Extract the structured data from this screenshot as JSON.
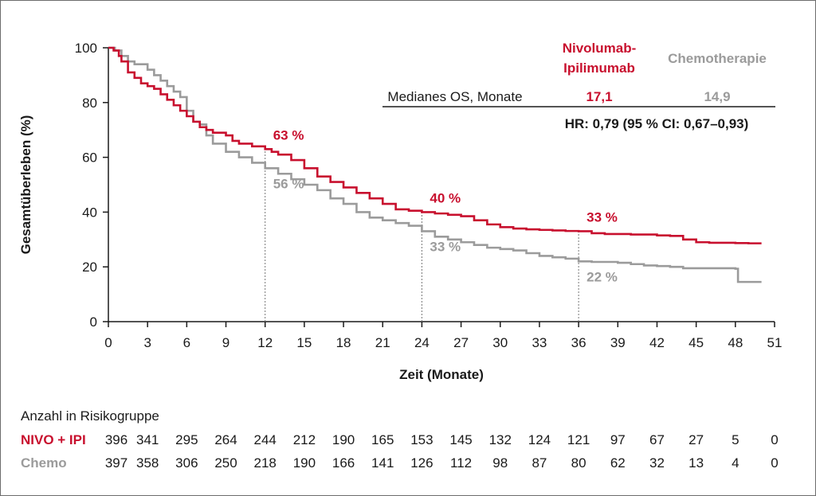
{
  "colors": {
    "nivo": "#c8102e",
    "chemo": "#9b9b9b",
    "axis": "#1a1a1a",
    "text": "#1a1a1a"
  },
  "chart_data": {
    "type": "line",
    "xlabel": "Zeit (Monate)",
    "ylabel": "Gesamtüberleben (%)",
    "xlim": [
      0,
      51
    ],
    "ylim": [
      0,
      100
    ],
    "x_ticks": [
      0,
      3,
      6,
      9,
      12,
      15,
      18,
      21,
      24,
      27,
      30,
      33,
      36,
      39,
      42,
      45,
      48,
      51
    ],
    "y_ticks": [
      0,
      20,
      40,
      60,
      80,
      100
    ],
    "x_tick_labels": [
      "0",
      "3",
      "6",
      "9",
      "12",
      "15",
      "18",
      "21",
      "24",
      "27",
      "30",
      "33",
      "36",
      "39",
      "42",
      "45",
      "48",
      "51"
    ],
    "y_tick_labels": [
      "0",
      "20",
      "40",
      "60",
      "80",
      "100"
    ],
    "series": [
      {
        "name": "Nivolumab-Ipilimumab",
        "color": "#c8102e",
        "points": [
          [
            0,
            100
          ],
          [
            0.4,
            99
          ],
          [
            0.8,
            97
          ],
          [
            1,
            95
          ],
          [
            1.5,
            91
          ],
          [
            2,
            89
          ],
          [
            2.5,
            87
          ],
          [
            3,
            86
          ],
          [
            3.5,
            85
          ],
          [
            4,
            83
          ],
          [
            4.5,
            81
          ],
          [
            5,
            79
          ],
          [
            5.5,
            77
          ],
          [
            6,
            75
          ],
          [
            6.5,
            73
          ],
          [
            7,
            71
          ],
          [
            7.5,
            70
          ],
          [
            8,
            69
          ],
          [
            9,
            68
          ],
          [
            9.5,
            66
          ],
          [
            10,
            65
          ],
          [
            11,
            64
          ],
          [
            12,
            63
          ],
          [
            12.5,
            62
          ],
          [
            13,
            61
          ],
          [
            14,
            59
          ],
          [
            15,
            56
          ],
          [
            16,
            53
          ],
          [
            17,
            51
          ],
          [
            18,
            49
          ],
          [
            19,
            47
          ],
          [
            20,
            45
          ],
          [
            21,
            43
          ],
          [
            22,
            41
          ],
          [
            23,
            40.5
          ],
          [
            24,
            40
          ],
          [
            25,
            39.5
          ],
          [
            26,
            39
          ],
          [
            27,
            38.5
          ],
          [
            28,
            37
          ],
          [
            29,
            35.5
          ],
          [
            30,
            34.5
          ],
          [
            31,
            34
          ],
          [
            32,
            33.7
          ],
          [
            33,
            33.5
          ],
          [
            34,
            33.3
          ],
          [
            35,
            33.1
          ],
          [
            36,
            33
          ],
          [
            37,
            32.3
          ],
          [
            38,
            32
          ],
          [
            40,
            31.8
          ],
          [
            42,
            31.5
          ],
          [
            43,
            31.3
          ],
          [
            44,
            30
          ],
          [
            45,
            29
          ],
          [
            46,
            28.8
          ],
          [
            48,
            28.7
          ],
          [
            49,
            28.6
          ],
          [
            50,
            28.6
          ]
        ]
      },
      {
        "name": "Chemotherapie",
        "color": "#9b9b9b",
        "points": [
          [
            0,
            100
          ],
          [
            0.5,
            99
          ],
          [
            1,
            97
          ],
          [
            1.5,
            95
          ],
          [
            2,
            94
          ],
          [
            3,
            92
          ],
          [
            3.5,
            90
          ],
          [
            4,
            88
          ],
          [
            4.5,
            86
          ],
          [
            5,
            84
          ],
          [
            5.5,
            82
          ],
          [
            6,
            77
          ],
          [
            6.5,
            73
          ],
          [
            7,
            72
          ],
          [
            7.5,
            68
          ],
          [
            8,
            65
          ],
          [
            9,
            62
          ],
          [
            10,
            60
          ],
          [
            11,
            58
          ],
          [
            12,
            56
          ],
          [
            13,
            54
          ],
          [
            14,
            52
          ],
          [
            15,
            50
          ],
          [
            16,
            48
          ],
          [
            17,
            45
          ],
          [
            18,
            43
          ],
          [
            19,
            40
          ],
          [
            20,
            38
          ],
          [
            21,
            37
          ],
          [
            22,
            36
          ],
          [
            23,
            35
          ],
          [
            24,
            33
          ],
          [
            25,
            31
          ],
          [
            26,
            30
          ],
          [
            27,
            29
          ],
          [
            28,
            28
          ],
          [
            29,
            27
          ],
          [
            30,
            26.5
          ],
          [
            31,
            26
          ],
          [
            32,
            25
          ],
          [
            33,
            24
          ],
          [
            34,
            23.5
          ],
          [
            35,
            23
          ],
          [
            36,
            22
          ],
          [
            37,
            21.8
          ],
          [
            38,
            21.8
          ],
          [
            39,
            21.5
          ],
          [
            40,
            21
          ],
          [
            41,
            20.5
          ],
          [
            42,
            20.3
          ],
          [
            43,
            20
          ],
          [
            44,
            19.5
          ],
          [
            45,
            19.5
          ],
          [
            46,
            19.5
          ],
          [
            47,
            19.5
          ],
          [
            48,
            19.3
          ],
          [
            48.2,
            14.5
          ],
          [
            50,
            14.5
          ]
        ]
      }
    ],
    "annotations": [
      {
        "x": 12,
        "series": 0,
        "text": "63 %",
        "ref_y": 63
      },
      {
        "x": 12,
        "series": 1,
        "text": "56 %",
        "ref_y": 56
      },
      {
        "x": 24,
        "series": 0,
        "text": "40 %",
        "ref_y": 40
      },
      {
        "x": 24,
        "series": 1,
        "text": "33 %",
        "ref_y": 33
      },
      {
        "x": 36,
        "series": 0,
        "text": "33 %",
        "ref_y": 33
      },
      {
        "x": 36,
        "series": 1,
        "text": "22 %",
        "ref_y": 22
      }
    ],
    "dashed_guides_x": [
      12,
      24,
      36
    ]
  },
  "stats_box": {
    "nivo_header_line1": "Nivolumab-",
    "nivo_header_line2": "Ipilimumab",
    "chemo_header": "Chemotherapie",
    "median_label": "Medianes OS, Monate",
    "nivo_median": "17,1",
    "chemo_median": "14,9",
    "hr_text": "HR: 0,79 (95 % CI: 0,67–0,93)"
  },
  "risk_table": {
    "title": "Anzahl in Risikogruppe",
    "rows": [
      {
        "label": "NIVO + IPI",
        "values": [
          "396",
          "341",
          "295",
          "264",
          "244",
          "212",
          "190",
          "165",
          "153",
          "145",
          "132",
          "124",
          "121",
          "97",
          "67",
          "27",
          "5",
          "0"
        ]
      },
      {
        "label": "Chemo",
        "values": [
          "397",
          "358",
          "306",
          "250",
          "218",
          "190",
          "166",
          "141",
          "126",
          "112",
          "98",
          "87",
          "80",
          "62",
          "32",
          "13",
          "4",
          "0"
        ]
      }
    ]
  }
}
